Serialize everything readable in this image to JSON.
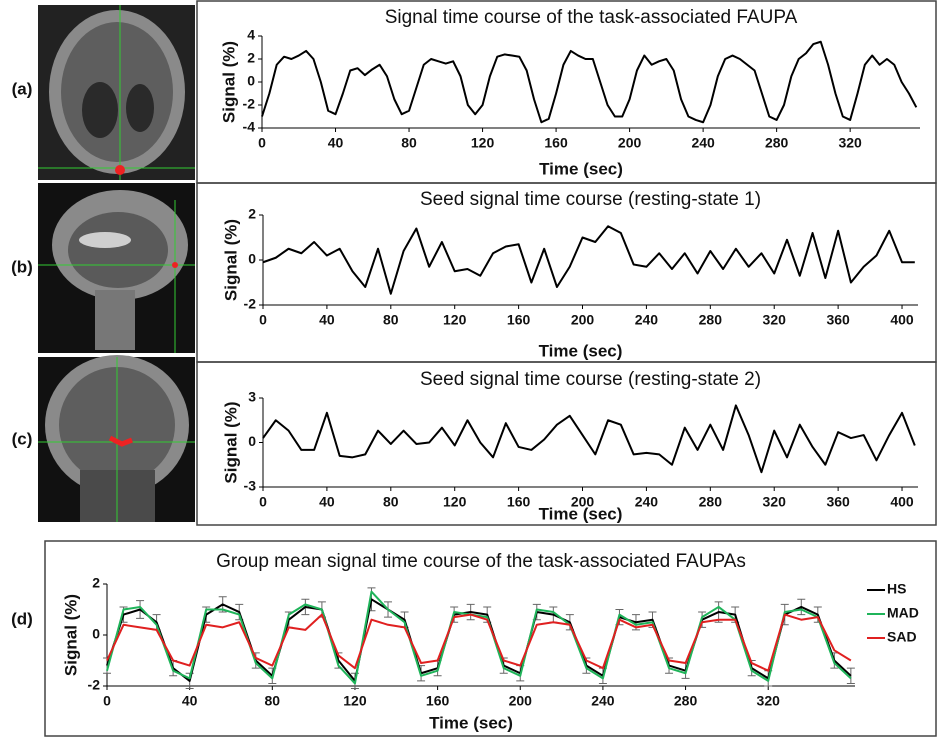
{
  "chart_data": [
    {
      "type": "line",
      "panel_label": "(a)",
      "title": "Signal time course of the task-associated FAUPA",
      "x_label": "Time (sec)",
      "y_label": "Signal (%)",
      "xlim": [
        0,
        358
      ],
      "xticks": [
        0,
        40,
        80,
        120,
        160,
        200,
        240,
        280,
        320
      ],
      "ylim": [
        -4,
        4
      ],
      "yticks": [
        -4,
        -2,
        0,
        2,
        4
      ],
      "series": [
        {
          "color": "#000000",
          "x": [
            0,
            4,
            8,
            12,
            16,
            20,
            24,
            28,
            32,
            36,
            40,
            44,
            48,
            52,
            56,
            60,
            64,
            68,
            72,
            76,
            80,
            84,
            88,
            92,
            96,
            100,
            104,
            108,
            112,
            116,
            120,
            124,
            128,
            132,
            136,
            140,
            144,
            148,
            152,
            156,
            160,
            164,
            168,
            172,
            176,
            180,
            184,
            188,
            192,
            196,
            200,
            204,
            208,
            212,
            216,
            220,
            224,
            228,
            232,
            236,
            240,
            244,
            248,
            252,
            256,
            260,
            264,
            268,
            272,
            276,
            280,
            284,
            288,
            292,
            296,
            300,
            304,
            308,
            312,
            316,
            320,
            324,
            328,
            332,
            336,
            340,
            344,
            348,
            352,
            356
          ],
          "values": [
            -3,
            -1,
            1.5,
            2.2,
            2,
            2.3,
            2.7,
            2,
            0,
            -2.5,
            -2.8,
            -1,
            1,
            1.2,
            0.6,
            1.1,
            1.5,
            0.5,
            -1.5,
            -2.8,
            -2.5,
            -0.5,
            1.5,
            2,
            1.8,
            1.6,
            1.8,
            0.5,
            -2,
            -2.8,
            -2,
            0.5,
            2.2,
            2.4,
            2.3,
            2.2,
            1,
            -1.5,
            -3.5,
            -3.2,
            -1,
            1.5,
            2.7,
            2.3,
            2,
            2,
            0,
            -2,
            -3,
            -3,
            -1.5,
            1,
            2.3,
            1.5,
            1.8,
            2,
            1,
            -1.5,
            -3,
            -3.3,
            -3.5,
            -2,
            0.5,
            2,
            2.3,
            2,
            1.5,
            1,
            -1,
            -3,
            -3.3,
            -2,
            0.5,
            2,
            2.5,
            3.3,
            3.5,
            1.5,
            -1,
            -3,
            -3.3,
            -1,
            1.5,
            2.3,
            1.5,
            2,
            1.5,
            0,
            -1,
            -2.2
          ]
        }
      ]
    },
    {
      "type": "line",
      "panel_label": "(b)",
      "title": "Seed signal time course (resting-state 1)",
      "x_label": "Time (sec)",
      "y_label": "Signal (%)",
      "xlim": [
        0,
        410
      ],
      "xticks": [
        0,
        40,
        80,
        120,
        160,
        200,
        240,
        280,
        320,
        360,
        400
      ],
      "ylim": [
        -2,
        2
      ],
      "yticks": [
        -2,
        0,
        2
      ],
      "series": [
        {
          "color": "#000000",
          "x": [
            0,
            8,
            16,
            24,
            32,
            40,
            48,
            56,
            64,
            72,
            80,
            88,
            96,
            104,
            112,
            120,
            128,
            136,
            144,
            152,
            160,
            168,
            176,
            184,
            192,
            200,
            208,
            216,
            224,
            232,
            240,
            248,
            256,
            264,
            272,
            280,
            288,
            296,
            304,
            312,
            320,
            328,
            336,
            344,
            352,
            360,
            368,
            376,
            384,
            392,
            400,
            408
          ],
          "values": [
            -0.1,
            0.1,
            0.5,
            0.3,
            0.8,
            0.2,
            0.5,
            -0.5,
            -1.2,
            0.5,
            -1.5,
            0.4,
            1.4,
            -0.3,
            0.8,
            -0.5,
            -0.4,
            -0.7,
            0.3,
            0.6,
            0.7,
            -1,
            0.5,
            -1.2,
            -0.3,
            1,
            0.8,
            1.5,
            1.2,
            -0.2,
            -0.3,
            0.3,
            -0.4,
            0.3,
            -0.6,
            0.4,
            -0.4,
            0.5,
            -0.3,
            0.3,
            -0.6,
            0.9,
            -0.7,
            1.2,
            -0.8,
            1.3,
            -1,
            -0.3,
            0.2,
            1.3,
            -0.1,
            -0.1
          ]
        }
      ]
    },
    {
      "type": "line",
      "panel_label": "(c)",
      "title": "Seed signal time course (resting-state 2)",
      "x_label": "Time (sec)",
      "y_label": "Signal (%)",
      "xlim": [
        0,
        410
      ],
      "xticks": [
        0,
        40,
        80,
        120,
        160,
        200,
        240,
        280,
        320,
        360,
        400
      ],
      "ylim": [
        -3,
        3
      ],
      "yticks": [
        -3,
        0,
        3
      ],
      "series": [
        {
          "color": "#000000",
          "x": [
            0,
            8,
            16,
            24,
            32,
            40,
            48,
            56,
            64,
            72,
            80,
            88,
            96,
            104,
            112,
            120,
            128,
            136,
            144,
            152,
            160,
            168,
            176,
            184,
            192,
            200,
            208,
            216,
            224,
            232,
            240,
            248,
            256,
            264,
            272,
            280,
            288,
            296,
            304,
            312,
            320,
            328,
            336,
            344,
            352,
            360,
            368,
            376,
            384,
            392,
            400,
            408
          ],
          "values": [
            0.3,
            1.5,
            0.8,
            -0.5,
            -0.5,
            2,
            -0.9,
            -1,
            -0.8,
            0.8,
            -0.1,
            0.8,
            -0.1,
            0,
            1,
            -0.2,
            1.5,
            0,
            -1,
            1.3,
            -0.3,
            -0.5,
            0.2,
            1.2,
            1.8,
            0.5,
            -0.8,
            1.5,
            1.2,
            -0.8,
            -0.7,
            -0.8,
            -1.5,
            1,
            -0.5,
            1.2,
            -0.5,
            2.5,
            0.5,
            -2,
            0.8,
            -1,
            1.2,
            -0.3,
            -1.5,
            0.7,
            0.3,
            0.5,
            -1.2,
            0.5,
            2,
            -0.2
          ]
        }
      ]
    },
    {
      "type": "line",
      "panel_label": "(d)",
      "title": "Group mean signal time course of the task-associated FAUPAs",
      "x_label": "Time (sec)",
      "y_label": "Signal (%)",
      "xlim": [
        0,
        362
      ],
      "xticks": [
        0,
        40,
        80,
        120,
        160,
        200,
        240,
        280,
        320
      ],
      "ylim": [
        -2,
        2
      ],
      "yticks": [
        -2,
        0,
        2
      ],
      "legend": "right",
      "series": [
        {
          "name": "HS",
          "color": "#000000",
          "x": [
            0,
            8,
            16,
            24,
            32,
            40,
            48,
            56,
            64,
            72,
            80,
            88,
            96,
            104,
            112,
            120,
            128,
            136,
            144,
            152,
            160,
            168,
            176,
            184,
            192,
            200,
            208,
            216,
            224,
            232,
            240,
            248,
            256,
            264,
            272,
            280,
            288,
            296,
            304,
            312,
            320,
            328,
            336,
            344,
            352,
            360
          ],
          "values": [
            -1.2,
            0.8,
            1,
            0.5,
            -1.3,
            -1.8,
            0.8,
            1.2,
            0.9,
            -1,
            -1.6,
            0.6,
            1.1,
            1,
            -1,
            -1.8,
            1.4,
            1,
            0.6,
            -1.5,
            -1.3,
            0.8,
            0.9,
            0.8,
            -1.2,
            -1.5,
            0.9,
            0.8,
            0.5,
            -1.2,
            -1.6,
            0.7,
            0.5,
            0.6,
            -1.2,
            -1.4,
            0.6,
            0.9,
            0.8,
            -1.3,
            -1.7,
            0.8,
            1.1,
            0.8,
            -1,
            -1.6
          ],
          "errors": [
            0.3,
            0.3,
            0.35,
            0.3,
            0.3,
            0.3,
            0.3,
            0.3,
            0.3,
            0.3,
            0.3,
            0.3,
            0.3,
            0.3,
            0.3,
            0.3,
            0.45,
            0.3,
            0.3,
            0.3,
            0.3,
            0.3,
            0.3,
            0.3,
            0.3,
            0.3,
            0.3,
            0.3,
            0.3,
            0.3,
            0.3,
            0.3,
            0.3,
            0.3,
            0.3,
            0.3,
            0.3,
            0.4,
            0.3,
            0.3,
            0.3,
            0.4,
            0.3,
            0.3,
            0.3,
            0.3
          ]
        },
        {
          "name": "MAD",
          "color": "#1fb45a",
          "x": [
            0,
            8,
            16,
            24,
            32,
            40,
            48,
            56,
            64,
            72,
            80,
            88,
            96,
            104,
            112,
            120,
            128,
            136,
            144,
            152,
            160,
            168,
            176,
            184,
            192,
            200,
            208,
            216,
            224,
            232,
            240,
            248,
            256,
            264,
            272,
            280,
            288,
            296,
            304,
            312,
            320,
            328,
            336,
            344,
            352,
            360
          ],
          "values": [
            -1.4,
            1,
            1.1,
            0.4,
            -1.4,
            -1.7,
            1,
            1,
            0.8,
            -1.1,
            -1.7,
            0.8,
            1.2,
            1,
            -1.2,
            -1.9,
            1.7,
            1,
            0.5,
            -1.6,
            -1.4,
            0.9,
            0.8,
            0.7,
            -1.3,
            -1.6,
            1,
            0.9,
            0.4,
            -1.3,
            -1.7,
            0.8,
            0.4,
            0.5,
            -1.3,
            -1.5,
            0.7,
            1.1,
            0.6,
            -1.4,
            -1.8,
            0.9,
            1,
            0.7,
            -1.1,
            -1.7
          ]
        },
        {
          "name": "SAD",
          "color": "#e02020",
          "x": [
            0,
            8,
            16,
            24,
            32,
            40,
            48,
            56,
            64,
            72,
            80,
            88,
            96,
            104,
            112,
            120,
            128,
            136,
            144,
            152,
            160,
            168,
            176,
            184,
            192,
            200,
            208,
            216,
            224,
            232,
            240,
            248,
            256,
            264,
            272,
            280,
            288,
            296,
            304,
            312,
            320,
            328,
            336,
            344,
            352,
            360
          ],
          "values": [
            -1,
            0.4,
            0.3,
            0.2,
            -1,
            -1.2,
            0.4,
            0.3,
            0.5,
            -0.9,
            -1.2,
            0.3,
            0.2,
            0.8,
            -0.8,
            -1.3,
            0.6,
            0.4,
            0.3,
            -1.1,
            -1,
            0.7,
            0.8,
            0.6,
            -1,
            -1.2,
            0.4,
            0.5,
            0.4,
            -1,
            -1.3,
            0.6,
            0.3,
            0.4,
            -1,
            -1.1,
            0.5,
            0.6,
            0.6,
            -1.1,
            -1.4,
            0.8,
            0.6,
            0.7,
            -0.6,
            -1
          ]
        }
      ]
    }
  ]
}
